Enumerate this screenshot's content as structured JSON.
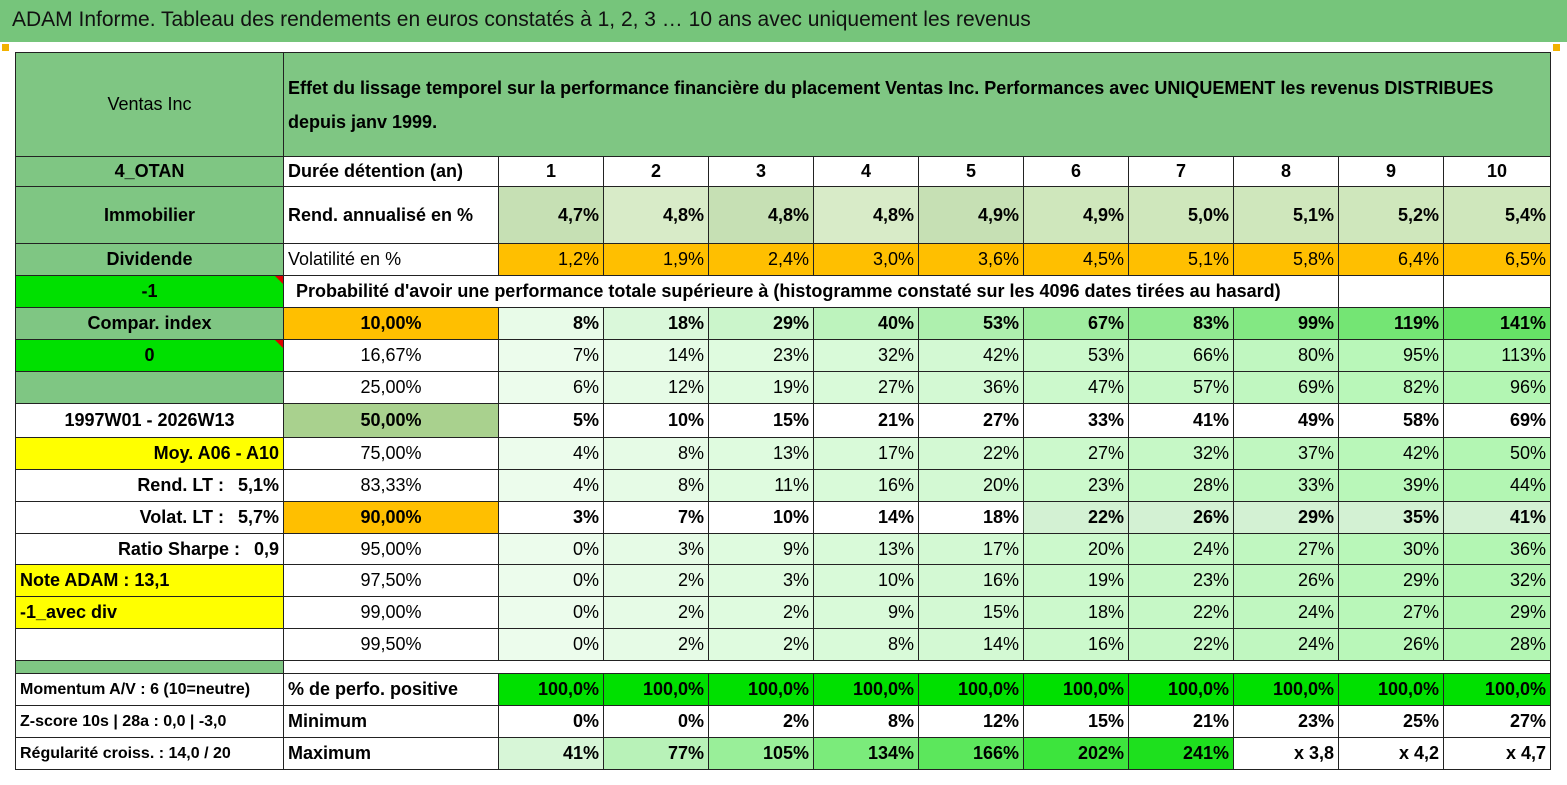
{
  "title": "ADAM Informe. Tableau des rendements en euros constatés à 1, 2, 3 … 10 ans avec uniquement les revenus",
  "header": {
    "name": "Ventas Inc",
    "desc": "Effet du lissage temporel sur la performance financière du placement Ventas Inc. Performances avec UNIQUEMENT les revenus DISTRIBUES depuis janv 1999."
  },
  "durations": {
    "label": "Durée détention (an)",
    "years": [
      "1",
      "2",
      "3",
      "4",
      "5",
      "6",
      "7",
      "8",
      "9",
      "10"
    ]
  },
  "side": {
    "code": "4_OTAN",
    "sector": "Immobilier",
    "type": "Dividende",
    "minus1": "-1",
    "compar": "Compar. index",
    "zero": "0",
    "period": "1997W01 - 2026W13",
    "moy": "Moy. A06 - A10",
    "rend_lt_label": "Rend. LT :",
    "rend_lt_value": "5,1%",
    "volat_lt_label": "Volat. LT :",
    "volat_lt_value": "5,7%",
    "sharpe_label": "Ratio Sharpe :",
    "sharpe_value": "0,9",
    "note": "Note ADAM : 13,1",
    "avec_div": "-1_avec div"
  },
  "rend": {
    "label": "Rend. annualisé en %",
    "values": [
      "4,7%",
      "4,8%",
      "4,8%",
      "4,8%",
      "4,9%",
      "4,9%",
      "5,0%",
      "5,1%",
      "5,2%",
      "5,4%"
    ]
  },
  "vol": {
    "label": "Volatilité en %",
    "values": [
      "1,2%",
      "1,9%",
      "2,4%",
      "3,0%",
      "3,6%",
      "4,5%",
      "5,1%",
      "5,8%",
      "6,4%",
      "6,5%"
    ]
  },
  "prob_title": "Probabilité d'avoir une performance totale supérieure à (histogramme constaté sur les 4096 dates tirées au hasard)",
  "quantiles": [
    {
      "pct": "10,00%",
      "values": [
        "8%",
        "18%",
        "29%",
        "40%",
        "53%",
        "67%",
        "83%",
        "99%",
        "119%",
        "141%"
      ]
    },
    {
      "pct": "16,67%",
      "values": [
        "7%",
        "14%",
        "23%",
        "32%",
        "42%",
        "53%",
        "66%",
        "80%",
        "95%",
        "113%"
      ]
    },
    {
      "pct": "25,00%",
      "values": [
        "6%",
        "12%",
        "19%",
        "27%",
        "36%",
        "47%",
        "57%",
        "69%",
        "82%",
        "96%"
      ]
    },
    {
      "pct": "50,00%",
      "values": [
        "5%",
        "10%",
        "15%",
        "21%",
        "27%",
        "33%",
        "41%",
        "49%",
        "58%",
        "69%"
      ]
    },
    {
      "pct": "75,00%",
      "values": [
        "4%",
        "8%",
        "13%",
        "17%",
        "22%",
        "27%",
        "32%",
        "37%",
        "42%",
        "50%"
      ]
    },
    {
      "pct": "83,33%",
      "values": [
        "4%",
        "8%",
        "11%",
        "16%",
        "20%",
        "23%",
        "28%",
        "33%",
        "39%",
        "44%"
      ]
    },
    {
      "pct": "90,00%",
      "values": [
        "3%",
        "7%",
        "10%",
        "14%",
        "18%",
        "22%",
        "26%",
        "29%",
        "35%",
        "41%"
      ]
    },
    {
      "pct": "95,00%",
      "values": [
        "0%",
        "3%",
        "9%",
        "13%",
        "17%",
        "20%",
        "24%",
        "27%",
        "30%",
        "36%"
      ]
    },
    {
      "pct": "97,50%",
      "values": [
        "0%",
        "2%",
        "3%",
        "10%",
        "16%",
        "19%",
        "23%",
        "26%",
        "29%",
        "32%"
      ]
    },
    {
      "pct": "99,00%",
      "values": [
        "0%",
        "2%",
        "2%",
        "9%",
        "15%",
        "18%",
        "22%",
        "24%",
        "27%",
        "29%"
      ]
    },
    {
      "pct": "99,50%",
      "values": [
        "0%",
        "2%",
        "2%",
        "8%",
        "14%",
        "16%",
        "22%",
        "24%",
        "26%",
        "28%"
      ]
    }
  ],
  "bottom": {
    "momentum": "Momentum A/V : 6 (10=neutre)",
    "zscore": "Z-score 10s | 28a : 0,0 | -3,0",
    "regul": "Régularité croiss. : 14,0 / 20",
    "pos_label": "% de perfo. positive",
    "pos_values": [
      "100,0%",
      "100,0%",
      "100,0%",
      "100,0%",
      "100,0%",
      "100,0%",
      "100,0%",
      "100,0%",
      "100,0%",
      "100,0%"
    ],
    "min_label": "Minimum",
    "min_values": [
      "0%",
      "0%",
      "2%",
      "8%",
      "12%",
      "15%",
      "21%",
      "23%",
      "25%",
      "27%"
    ],
    "max_label": "Maximum",
    "max_values": [
      "41%",
      "77%",
      "105%",
      "134%",
      "166%",
      "202%",
      "241%",
      "x 3,8",
      "x 4,2",
      "x 4,7"
    ]
  },
  "colors": {
    "header_green": "#7fc683",
    "bright_green": "#00e000",
    "orange": "#ffbf00",
    "yellow": "#ffff00",
    "red_text": "#e00000"
  }
}
